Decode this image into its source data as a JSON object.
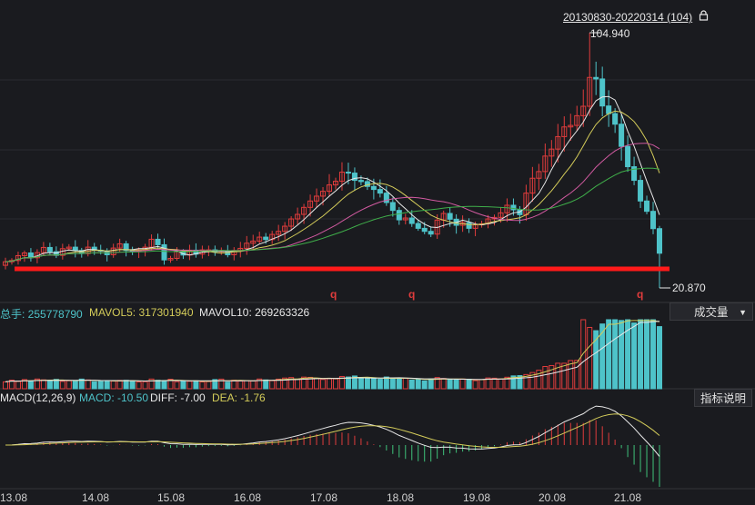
{
  "header": {
    "range_label": "20130830-20220314 (104)",
    "lock_icon": "lock-icon"
  },
  "price": {
    "high_label": "104.940",
    "low_label": "20.870"
  },
  "markers": [
    "q",
    "q",
    "q"
  ],
  "volume": {
    "total_label": "总手: 255778790",
    "mavol5_label": "MAVOL5: 317301940",
    "mavol10_label": "MAVOL10: 269263326",
    "dropdown_label": "成交量"
  },
  "macd": {
    "params_label": "MACD(12,26,9)",
    "macd_label": "MACD: -10.50",
    "diff_label": "DIFF: -7.00",
    "dea_label": "DEA: -1.76",
    "help_button": "指标说明"
  },
  "x_ticks": [
    "13.08",
    "14.08",
    "15.08",
    "16.08",
    "17.08",
    "18.08",
    "19.08",
    "20.08",
    "21.08"
  ],
  "colors": {
    "background": "#1a1b1f",
    "up": "#e03c3c",
    "down": "#4ec3c9",
    "support": "#ff1a1a",
    "ma_white": "#e8e8e8",
    "ma_yellow": "#d4cc5a",
    "ma_magenta": "#d15aa0",
    "ma_green": "#3fae4a",
    "diff": "#e8e8e8",
    "dea": "#d4cc5a",
    "text_teal": "#4ec3c9"
  },
  "chart_data": {
    "type": "candlestick",
    "period": "monthly",
    "x_ticks": [
      "13.08",
      "14.08",
      "15.08",
      "16.08",
      "17.08",
      "18.08",
      "19.08",
      "20.08",
      "21.08"
    ],
    "price_high": 104.94,
    "price_low": 20.87,
    "closes": [
      29.5,
      29.9,
      31.5,
      32.4,
      30.8,
      32.5,
      34.2,
      32.8,
      31.6,
      33.8,
      34.3,
      33.2,
      32.2,
      34.3,
      33.3,
      33.0,
      31.8,
      34.0,
      35.4,
      33.2,
      32.9,
      33.4,
      34.3,
      36.9,
      35.1,
      30.1,
      30.6,
      32.9,
      31.7,
      33.3,
      32.0,
      33.4,
      33.4,
      32.8,
      33.1,
      31.8,
      33.2,
      33.9,
      35.6,
      36.3,
      37.6,
      36.8,
      38.5,
      39.5,
      41.2,
      43.6,
      45.1,
      47.4,
      49.5,
      51.1,
      52.7,
      54.8,
      56.0,
      59.0,
      58.7,
      56.3,
      55.9,
      54.3,
      53.3,
      52.1,
      49.0,
      46.4,
      43.3,
      43.9,
      42.1,
      40.5,
      39.5,
      38.6,
      43.2,
      45.4,
      43.5,
      41.5,
      42.4,
      40.5,
      41.7,
      42.0,
      43.6,
      44.1,
      45.6,
      48.1,
      46.6,
      45.0,
      52.1,
      57.0,
      59.2,
      64.3,
      66.6,
      70.7,
      73.9,
      74.4,
      77.6,
      80.7,
      90.2,
      89.7,
      80.8,
      78.3,
      74.8,
      67.5,
      60.8,
      56.3,
      49.5,
      46.1,
      40.4,
      32.3
    ]
  }
}
